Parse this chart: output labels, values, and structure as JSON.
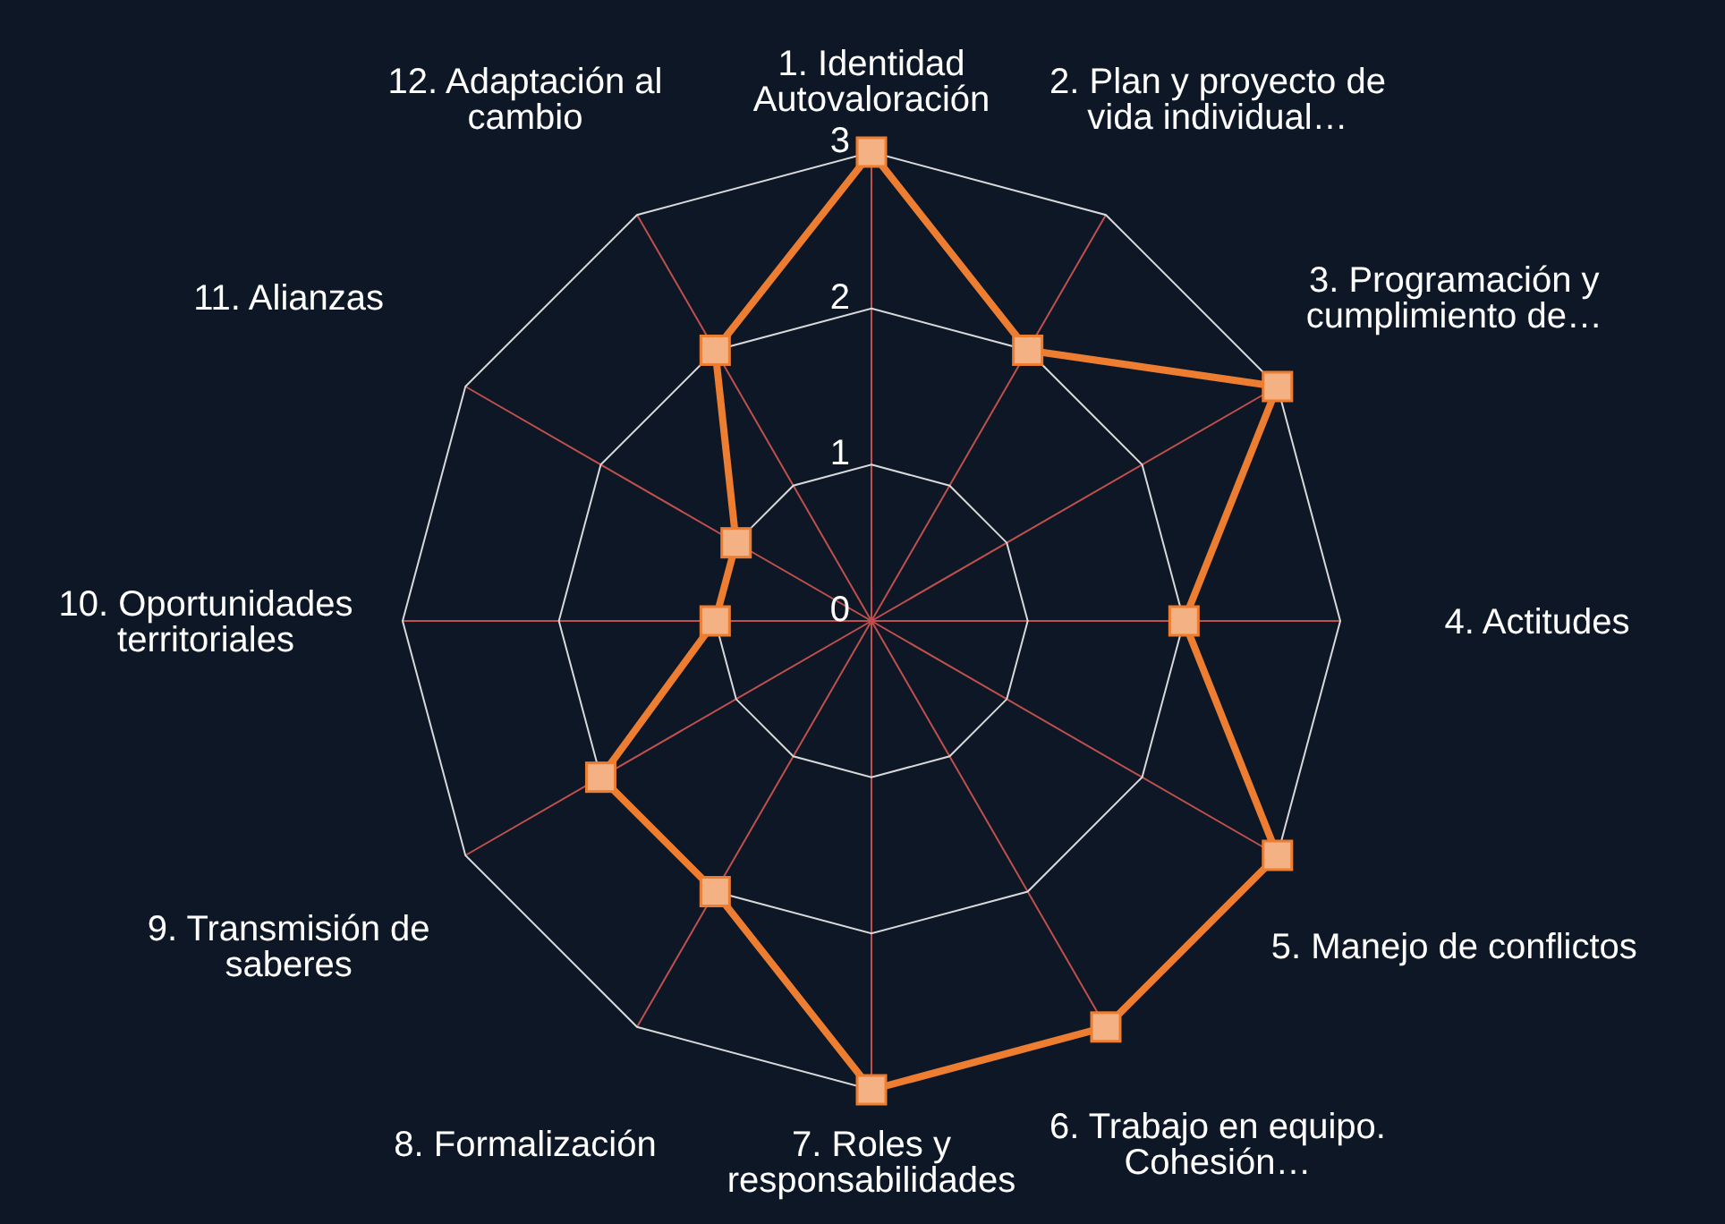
{
  "chart_data": {
    "type": "radar",
    "categories": [
      "1. Identidad Autovaloración",
      "2. Plan y proyecto de vida individual…",
      "3. Programación y cumplimiento de…",
      "4. Actitudes",
      "5. Manejo de conflictos",
      "6. Trabajo en equipo. Cohesión…",
      "7. Roles y responsabilidades",
      "8. Formalización",
      "9. Transmisión de saberes",
      "10. Oportunidades territoriales",
      "11. Alianzas",
      "12. Adaptación al cambio"
    ],
    "series": [
      {
        "color": "#ed7d31",
        "values": [
          3,
          2,
          3,
          2,
          3,
          3,
          3,
          2,
          2,
          1,
          1,
          2
        ]
      }
    ],
    "ylim": [
      0,
      3
    ],
    "yticks": [
      0,
      1,
      2,
      3
    ],
    "grid": true,
    "marker": "square",
    "legend": false
  }
}
